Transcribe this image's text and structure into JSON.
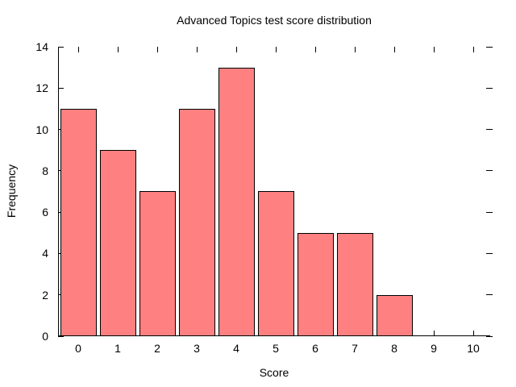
{
  "chart_data": {
    "type": "bar",
    "title": "Advanced Topics test score distribution",
    "xlabel": "Score",
    "ylabel": "Frequency",
    "categories": [
      "0",
      "1",
      "2",
      "3",
      "4",
      "5",
      "6",
      "7",
      "8",
      "9",
      "10"
    ],
    "values": [
      11,
      9,
      7,
      11,
      13,
      7,
      5,
      5,
      2,
      0,
      0
    ],
    "ylim": [
      0,
      14
    ],
    "yticks": [
      0,
      2,
      4,
      6,
      8,
      10,
      12,
      14
    ],
    "bar_color": "#ff8080",
    "bar_edge_color": "#000000",
    "background_color": "#ffffff",
    "grid": false,
    "legend": "none",
    "tick_style": "inward ticks mirrored on top and right, no top/right border lines"
  }
}
